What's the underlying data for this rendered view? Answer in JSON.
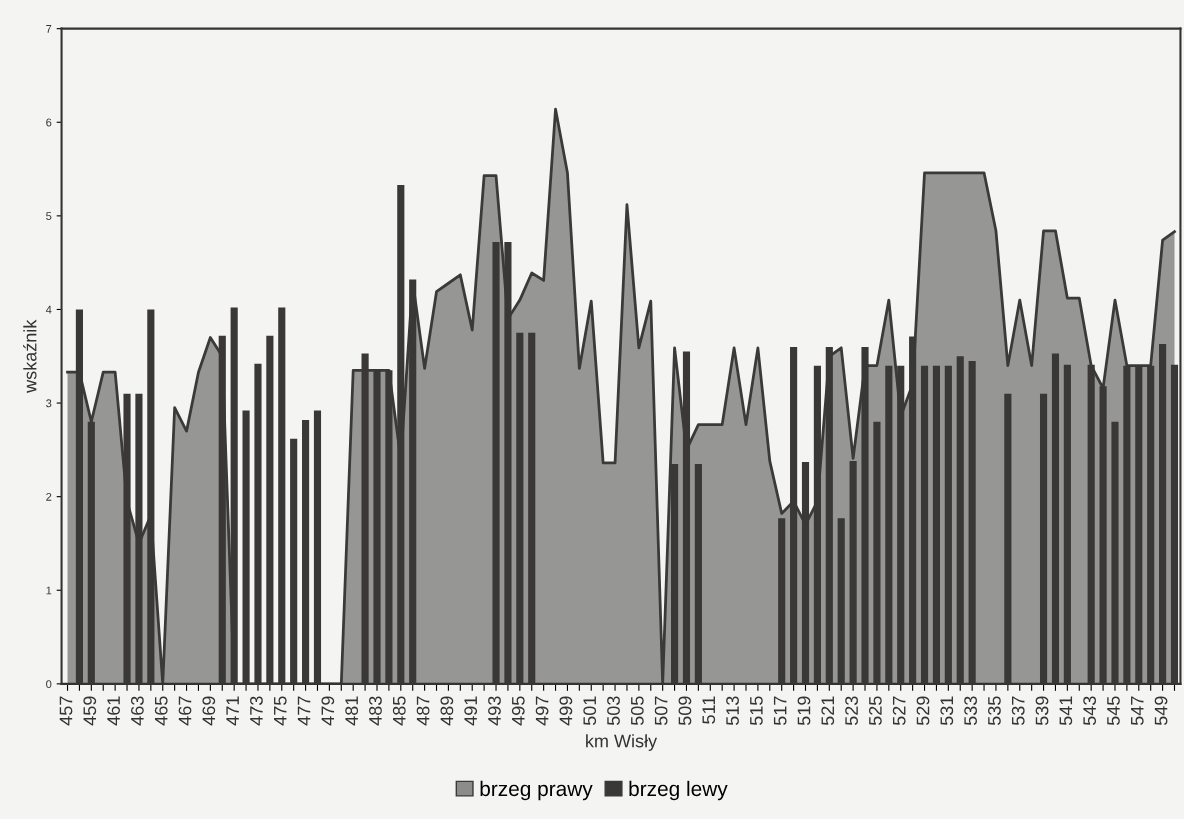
{
  "chart_data": {
    "type": "bar",
    "xlabel": "km Wisły",
    "ylabel": "wskaźnik",
    "categories": [
      "457",
      null,
      "459",
      null,
      "461",
      null,
      "463",
      null,
      "465",
      null,
      "467",
      null,
      "469",
      null,
      "471",
      null,
      "473",
      null,
      "475",
      null,
      "477",
      null,
      "479",
      null,
      "481",
      null,
      "483",
      null,
      "485",
      null,
      "487",
      null,
      "489",
      null,
      "491",
      null,
      "493",
      null,
      "495",
      null,
      "497",
      null,
      "499",
      null,
      "501",
      null,
      "503",
      null,
      "505",
      null,
      "507",
      null,
      "509",
      null,
      "511",
      null,
      "513",
      null,
      "515",
      null,
      "517",
      null,
      "519",
      null,
      "521",
      null,
      "523",
      null,
      "525",
      null,
      "527",
      null,
      "529",
      null,
      "531",
      null,
      "533",
      null,
      "535",
      null,
      "537",
      null,
      "539",
      null,
      "541",
      null,
      "543",
      null,
      "545",
      null,
      "547",
      null,
      "549",
      null
    ],
    "series": [
      {
        "name": "brzeg prawy",
        "type": "area",
        "color": "#8c8c8a",
        "values": [
          3.33,
          3.33,
          2.8,
          3.33,
          3.33,
          1.95,
          1.5,
          1.8,
          0,
          2.95,
          2.7,
          3.33,
          3.7,
          3.5,
          0,
          0,
          0,
          0,
          0,
          0,
          0,
          0,
          0,
          0,
          3.35,
          3.35,
          3.35,
          3.35,
          2.4,
          4.3,
          3.37,
          4.19,
          4.28,
          4.37,
          3.78,
          5.43,
          5.43,
          3.9,
          4.1,
          4.39,
          4.31,
          6.14,
          5.46,
          3.37,
          4.09,
          2.36,
          2.36,
          5.12,
          3.59,
          4.09,
          0,
          3.59,
          2.5,
          2.77,
          2.77,
          2.77,
          3.59,
          2.77,
          3.59,
          2.38,
          1.82,
          1.95,
          1.7,
          1.95,
          3.5,
          3.59,
          2.41,
          3.4,
          3.4,
          4.1,
          2.86,
          3.2,
          5.46,
          5.46,
          5.46,
          5.46,
          5.46,
          5.46,
          4.84,
          3.4,
          4.1,
          3.4,
          4.84,
          4.84,
          4.12,
          4.12,
          3.4,
          3.16,
          4.1,
          3.4,
          3.4,
          3.4,
          4.74,
          4.83
        ]
      },
      {
        "name": "brzeg lewy",
        "color": "#3a3737",
        "values": [
          null,
          4.0,
          2.8,
          null,
          null,
          3.1,
          3.1,
          4.0,
          null,
          null,
          null,
          null,
          null,
          3.72,
          4.02,
          2.92,
          3.42,
          3.72,
          4.02,
          2.62,
          2.82,
          2.92,
          null,
          null,
          null,
          3.53,
          3.35,
          3.35,
          5.33,
          4.32,
          null,
          null,
          null,
          null,
          null,
          null,
          4.72,
          4.72,
          3.75,
          3.75,
          null,
          null,
          null,
          null,
          null,
          null,
          null,
          null,
          null,
          null,
          null,
          2.35,
          3.55,
          2.35,
          null,
          null,
          null,
          null,
          null,
          null,
          1.77,
          3.6,
          2.37,
          3.4,
          3.6,
          1.77,
          2.38,
          3.6,
          2.8,
          3.4,
          3.4,
          3.71,
          3.4,
          3.4,
          3.4,
          3.5,
          3.45,
          null,
          null,
          3.1,
          null,
          null,
          3.1,
          3.53,
          3.41,
          null,
          3.41,
          3.18,
          2.8,
          3.4,
          3.4,
          3.4,
          3.63,
          3.41
        ]
      }
    ],
    "ylim": [
      0,
      7
    ],
    "yticks": [
      0,
      1,
      2,
      3,
      4,
      5,
      6,
      7
    ],
    "grid": false,
    "legend": "bottom"
  }
}
